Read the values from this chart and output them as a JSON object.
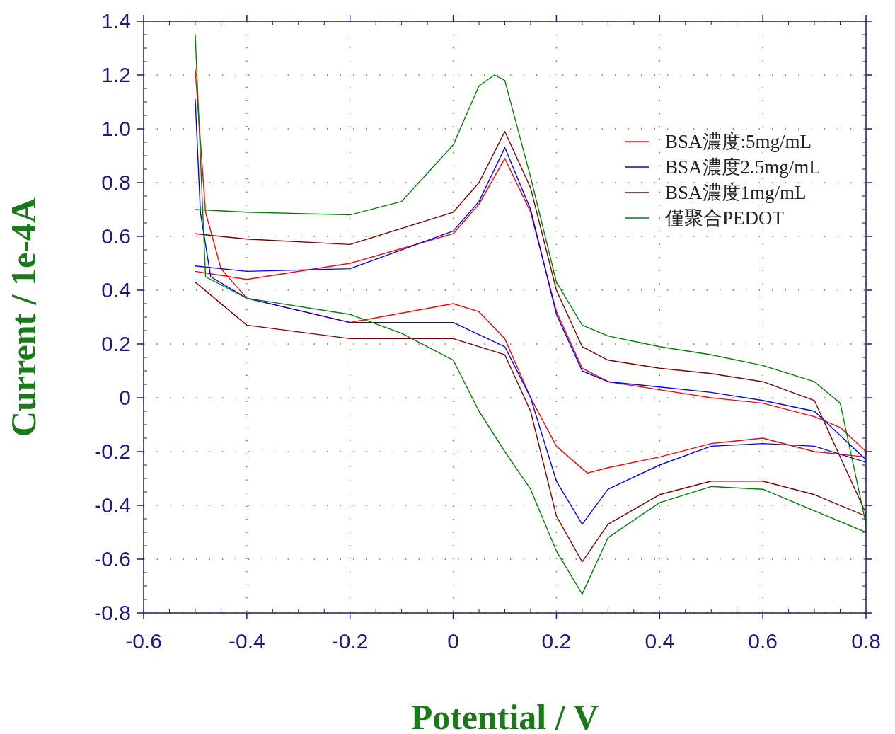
{
  "chart_data": {
    "type": "line",
    "xlabel": "Potential / V",
    "ylabel": "Current / 1e-4A",
    "xlim": [
      -0.6,
      0.8
    ],
    "ylim": [
      -0.8,
      1.4
    ],
    "xticks": [
      -0.6,
      -0.4,
      -0.2,
      0,
      0.2,
      0.4,
      0.6,
      0.8
    ],
    "yticks": [
      -0.8,
      -0.6,
      -0.4,
      -0.2,
      0,
      0.2,
      0.4,
      0.6,
      0.8,
      {
        "value": 1,
        "label": "1.0"
      },
      1.2,
      1.4
    ],
    "grid": true,
    "legend": "top right",
    "line_style": "solid",
    "marker": "none",
    "series": [
      {
        "name": "BSA濃度:5mg/mL",
        "color": "#ff0000",
        "x": [
          -0.5,
          -0.4,
          -0.2,
          0,
          0.05,
          0.1,
          0.15,
          0.2,
          0.25,
          0.3,
          0.4,
          0.5,
          0.6,
          0.7,
          0.75,
          0.8,
          0.8,
          0.7,
          0.6,
          0.5,
          0.4,
          0.3,
          0.26,
          0.2,
          0.15,
          0.1,
          0.05,
          0,
          -0.2,
          -0.4,
          -0.45,
          -0.48,
          -0.5
        ],
        "values": [
          0.47,
          0.44,
          0.5,
          0.61,
          0.72,
          0.89,
          0.69,
          0.32,
          0.11,
          0.06,
          0.03,
          0.0,
          -0.02,
          -0.07,
          -0.11,
          -0.2,
          -0.22,
          -0.2,
          -0.15,
          -0.17,
          -0.22,
          -0.26,
          -0.28,
          -0.18,
          0.0,
          0.22,
          0.32,
          0.35,
          0.28,
          0.37,
          0.48,
          0.69,
          1.22
        ]
      },
      {
        "name": "BSA濃度2.5mg/mL",
        "color": "#0000ff",
        "x": [
          -0.5,
          -0.4,
          -0.2,
          0,
          0.05,
          0.1,
          0.15,
          0.2,
          0.25,
          0.3,
          0.4,
          0.5,
          0.6,
          0.7,
          0.8,
          0.8,
          0.7,
          0.6,
          0.5,
          0.4,
          0.3,
          0.25,
          0.2,
          0.15,
          0.1,
          0,
          -0.2,
          -0.4,
          -0.47,
          -0.49,
          -0.5
        ],
        "values": [
          0.49,
          0.47,
          0.48,
          0.62,
          0.73,
          0.93,
          0.7,
          0.31,
          0.1,
          0.06,
          0.04,
          0.02,
          -0.01,
          -0.05,
          -0.23,
          -0.24,
          -0.18,
          -0.17,
          -0.18,
          -0.25,
          -0.34,
          -0.47,
          -0.31,
          0.0,
          0.19,
          0.28,
          0.28,
          0.37,
          0.45,
          0.69,
          1.11
        ]
      },
      {
        "name": "BSA濃度1mg/mL",
        "color": "#800000",
        "x": [
          -0.5,
          -0.4,
          -0.2,
          0,
          0.05,
          0.1,
          0.15,
          0.2,
          0.25,
          0.3,
          0.4,
          0.5,
          0.6,
          0.7,
          0.8,
          0.8,
          0.7,
          0.6,
          0.5,
          0.4,
          0.3,
          0.25,
          0.2,
          0.15,
          0.1,
          0,
          -0.2,
          -0.4,
          -0.5
        ],
        "values": [
          0.61,
          0.59,
          0.57,
          0.69,
          0.8,
          0.99,
          0.78,
          0.4,
          0.19,
          0.14,
          0.11,
          0.09,
          0.06,
          -0.01,
          -0.43,
          -0.44,
          -0.36,
          -0.31,
          -0.31,
          -0.36,
          -0.47,
          -0.61,
          -0.44,
          -0.05,
          0.16,
          0.22,
          0.22,
          0.27,
          0.43
        ]
      },
      {
        "name": "僅聚合PEDOT",
        "color": "#008000",
        "x": [
          -0.5,
          -0.4,
          -0.2,
          -0.1,
          0,
          0.05,
          0.08,
          0.1,
          0.15,
          0.2,
          0.25,
          0.3,
          0.4,
          0.5,
          0.6,
          0.7,
          0.75,
          0.8,
          0.8,
          0.7,
          0.6,
          0.5,
          0.4,
          0.3,
          0.25,
          0.2,
          0.15,
          0.1,
          0.05,
          0,
          -0.1,
          -0.2,
          -0.4,
          -0.48,
          -0.5
        ],
        "values": [
          0.7,
          0.69,
          0.68,
          0.73,
          0.94,
          1.16,
          1.2,
          1.18,
          0.82,
          0.43,
          0.27,
          0.23,
          0.19,
          0.16,
          0.12,
          0.06,
          -0.02,
          -0.47,
          -0.5,
          -0.42,
          -0.34,
          -0.33,
          -0.39,
          -0.52,
          -0.73,
          -0.57,
          -0.34,
          -0.2,
          -0.05,
          0.14,
          0.24,
          0.31,
          0.37,
          0.45,
          1.35
        ]
      }
    ]
  }
}
